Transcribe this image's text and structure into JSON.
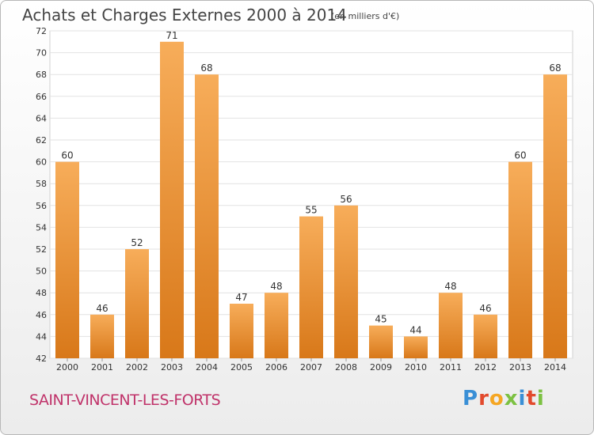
{
  "title": "Achats et Charges Externes 2000 à 2014",
  "subtitle": "(en milliers d'€)",
  "commune": "SAINT-VINCENT-LES-FORTS",
  "logo": {
    "text": "Proxiti"
  },
  "colors": {
    "bar_light": "#f5a54e",
    "bar_dark": "#d4741c",
    "commune": "#c0336a"
  },
  "chart_data": {
    "type": "bar",
    "title": "Achats et Charges Externes 2000 à 2014",
    "subtitle": "(en milliers d'€)",
    "categories": [
      "2000",
      "2001",
      "2002",
      "2003",
      "2004",
      "2005",
      "2006",
      "2007",
      "2008",
      "2009",
      "2010",
      "2011",
      "2012",
      "2013",
      "2014"
    ],
    "values": [
      60,
      46,
      52,
      71,
      68,
      47,
      48,
      55,
      56,
      45,
      44,
      48,
      46,
      60,
      68
    ],
    "ylim": [
      42,
      72
    ],
    "yticks": [
      42,
      44,
      46,
      48,
      50,
      52,
      54,
      56,
      58,
      60,
      62,
      64,
      66,
      68,
      70,
      72
    ],
    "grid": true,
    "xlabel": "",
    "ylabel": ""
  }
}
